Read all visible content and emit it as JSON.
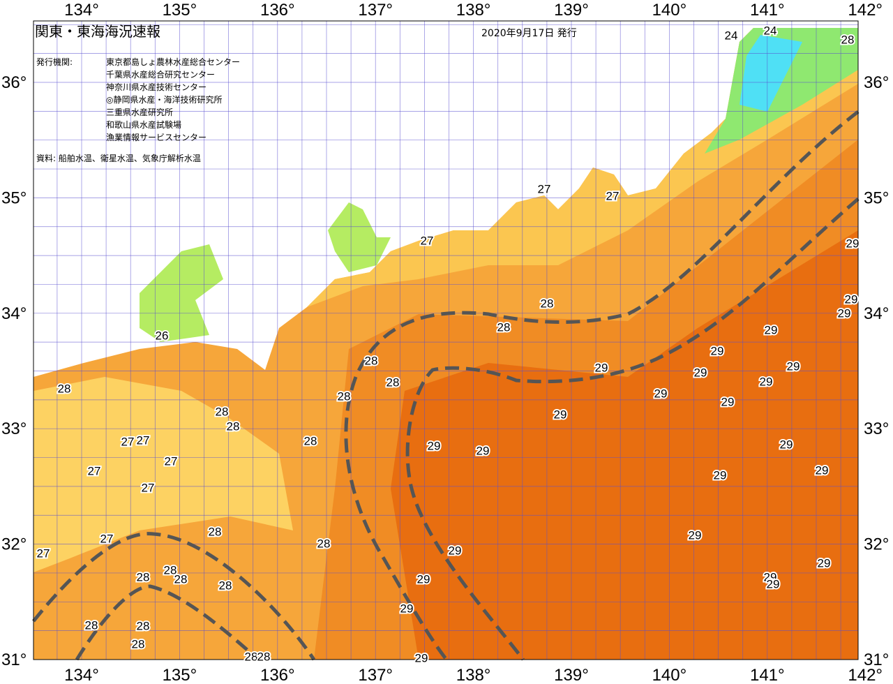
{
  "header": {
    "title": "関東・東海海況速報",
    "date": "2020年9月17日 発行",
    "issuer_label": "発行機関:",
    "issuers": [
      "東京都島しょ農林水産総合センター",
      "千葉県水産総合研究センター",
      "神奈川県水産技術センター",
      "◎静岡県水産・海洋技術研究所",
      "三重県水産研究所",
      "和歌山県水産試験場",
      "漁業情報サービスセンター"
    ],
    "source": "資料: 船舶水温、衛星水温、気象庁解析水温"
  },
  "map": {
    "lon_labels": [
      "134°",
      "135°",
      "136°",
      "137°",
      "138°",
      "139°",
      "140°",
      "141°",
      "142°"
    ],
    "lat_labels": [
      "36°",
      "35°",
      "34°",
      "33°",
      "32°",
      "31°"
    ],
    "contour_labels": [
      "24",
      "24",
      "28",
      "27",
      "27",
      "27",
      "26",
      "28",
      "28",
      "28",
      "28",
      "28",
      "28",
      "28",
      "28",
      "28",
      "29",
      "29",
      "29",
      "29",
      "29",
      "29",
      "29",
      "29",
      "29",
      "29",
      "29",
      "29",
      "29",
      "29",
      "27",
      "27",
      "27",
      "27",
      "27",
      "27",
      "27",
      "28",
      "28",
      "29",
      "29",
      "29",
      "29",
      "29",
      "29",
      "29",
      "28",
      "28",
      "28",
      "28",
      "28",
      "28",
      "28",
      "29",
      "29",
      "29",
      "28",
      "28",
      "29"
    ]
  }
}
